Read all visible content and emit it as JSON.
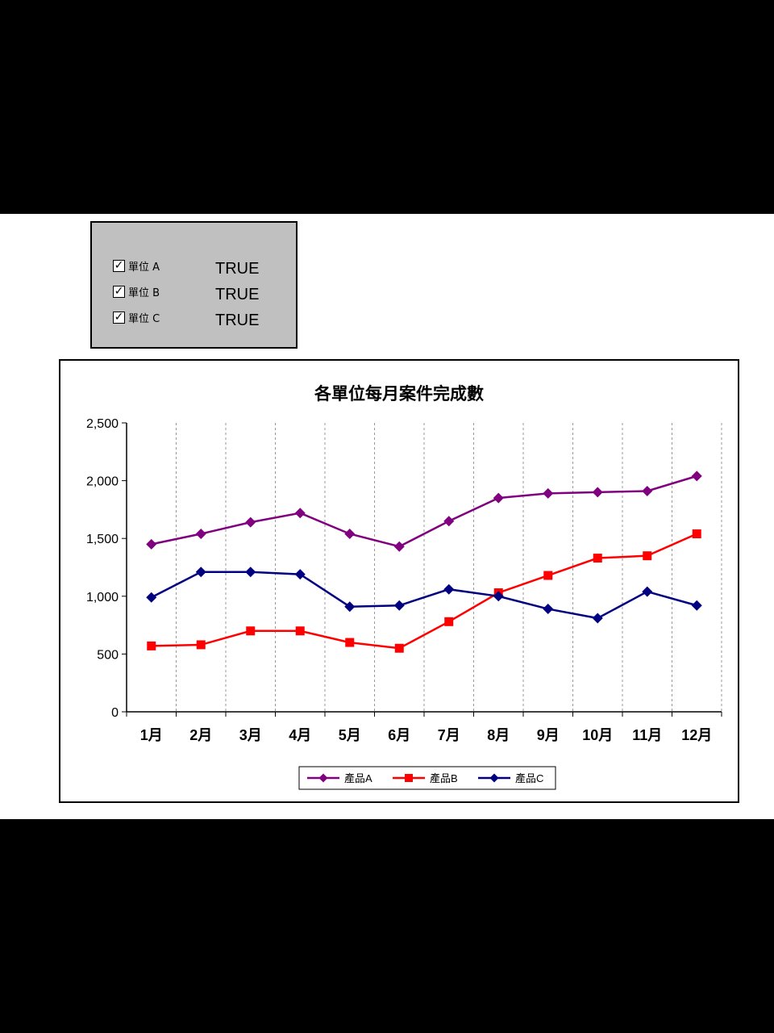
{
  "controls": [
    {
      "label": "單位 A",
      "checked": true,
      "value": "TRUE"
    },
    {
      "label": "單位 B",
      "checked": true,
      "value": "TRUE"
    },
    {
      "label": "單位 C",
      "checked": true,
      "value": "TRUE"
    }
  ],
  "chart_data": {
    "type": "line",
    "title": "各單位每月案件完成數",
    "xlabel": "",
    "ylabel": "",
    "categories": [
      "1月",
      "2月",
      "3月",
      "4月",
      "5月",
      "6月",
      "7月",
      "8月",
      "9月",
      "10月",
      "11月",
      "12月"
    ],
    "ylim": [
      0,
      2500
    ],
    "yticks": [
      0,
      500,
      1000,
      1500,
      2000,
      2500
    ],
    "ytick_labels": [
      "0",
      "500",
      "1,000",
      "1,500",
      "2,000",
      "2,500"
    ],
    "grid": "vertical dashed",
    "legend": "bottom",
    "series": [
      {
        "name": "產品A",
        "color": "#800080",
        "marker": "diamond",
        "values": [
          1450,
          1540,
          1640,
          1720,
          1540,
          1430,
          1650,
          1850,
          1890,
          1900,
          1910,
          2040
        ]
      },
      {
        "name": "產品B",
        "color": "#ff0000",
        "marker": "square",
        "values": [
          570,
          580,
          700,
          700,
          600,
          550,
          780,
          1030,
          1180,
          1330,
          1350,
          1540
        ]
      },
      {
        "name": "產品C",
        "color": "#000080",
        "marker": "diamond",
        "values": [
          990,
          1210,
          1210,
          1190,
          910,
          920,
          1060,
          1000,
          890,
          810,
          1040,
          920
        ]
      }
    ]
  }
}
